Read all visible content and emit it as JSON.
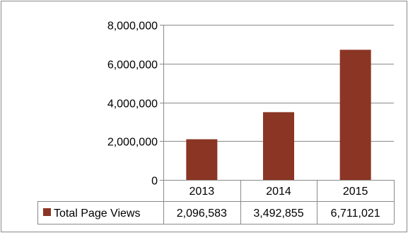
{
  "chart_data": {
    "type": "bar",
    "categories": [
      "2013",
      "2014",
      "2015"
    ],
    "series": [
      {
        "name": "Total Page Views",
        "values": [
          2096583,
          3492855,
          6711021
        ],
        "color": "#8b3524",
        "value_labels": [
          "2,096,583",
          "3,492,855",
          "6,711,021"
        ]
      }
    ],
    "ylim": [
      0,
      8000000
    ],
    "yticks": [
      0,
      2000000,
      4000000,
      6000000,
      8000000
    ],
    "ytick_labels": [
      "0",
      "2,000,000",
      "4,000,000",
      "6,000,000",
      "8,000,000"
    ],
    "grid": true,
    "legend": "data-table",
    "title": "",
    "xlabel": "",
    "ylabel": ""
  }
}
